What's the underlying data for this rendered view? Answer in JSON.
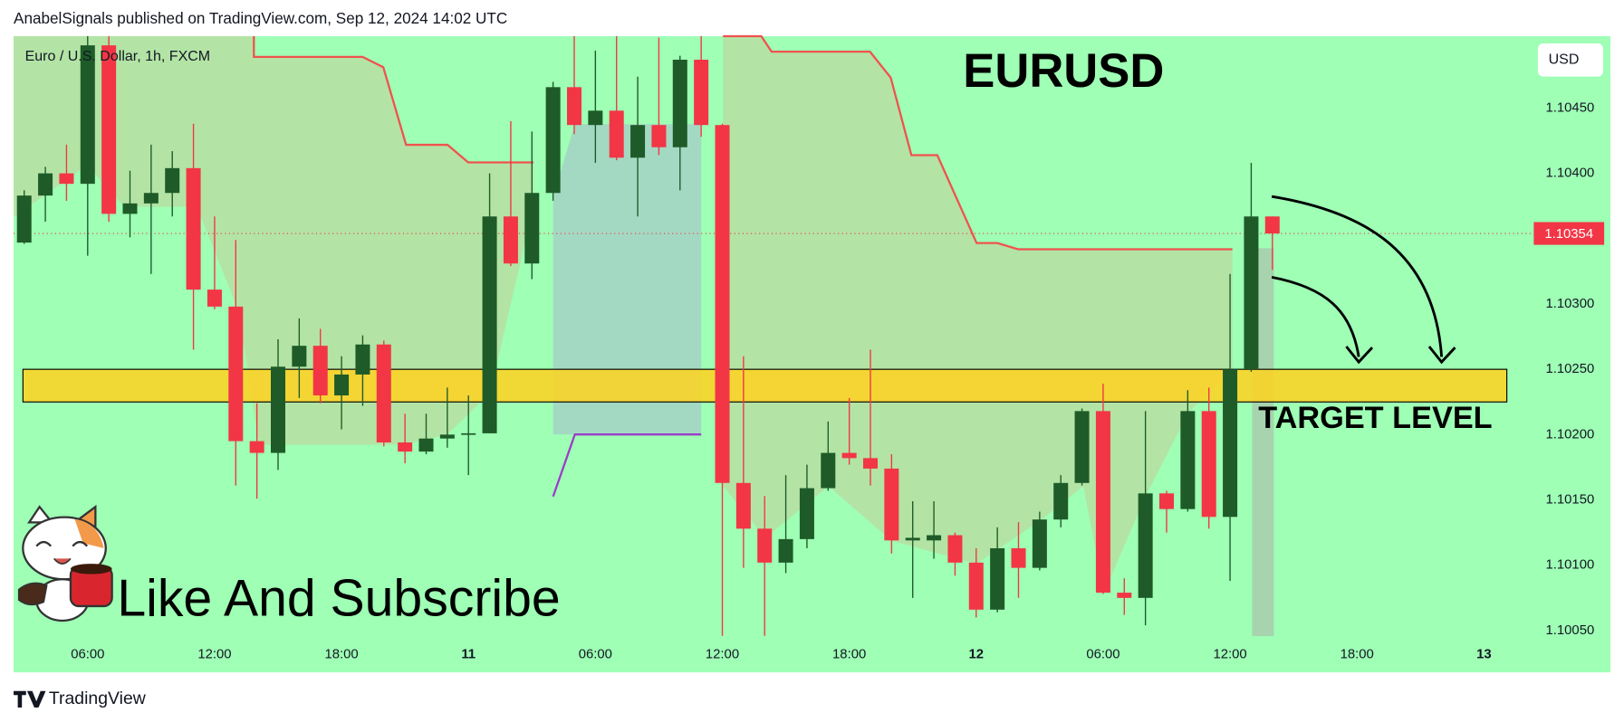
{
  "header": "AnabelSignals published on TradingView.com, Sep 12, 2024 14:02 UTC",
  "footer": "TradingView",
  "chart_data": {
    "type": "candlestick",
    "title": "EURUSD",
    "symbol_label": "Euro / U.S. Dollar, 1h, FXCM",
    "currency": "USD",
    "annotations": [
      "TARGET LEVEL",
      "Like And Subscribe"
    ],
    "target_zone": [
      1.10225,
      1.1025
    ],
    "last_price": 1.10354,
    "up_color": "#1e5b28",
    "down_color": "#f23645",
    "background": "#9effb5",
    "categories": [
      null,
      null,
      null,
      "06:00",
      null,
      null,
      null,
      null,
      null,
      "12:00",
      null,
      null,
      null,
      null,
      null,
      "18:00",
      null,
      null,
      null,
      null,
      null,
      "11",
      null,
      null,
      null,
      null,
      null,
      "06:00",
      null,
      null,
      null,
      null,
      null,
      "12:00",
      null,
      null,
      null,
      null,
      null,
      "18:00",
      null,
      null,
      null,
      null,
      null,
      "12",
      null,
      null,
      null,
      null,
      null,
      "06:00",
      null,
      null,
      null,
      null,
      null,
      "12:00",
      null,
      null,
      null,
      null,
      null,
      "18:00",
      null,
      null,
      null,
      null,
      null,
      "13",
      null,
      null
    ],
    "open": [
      1.10347,
      1.10383,
      1.104,
      1.10392,
      1.10498,
      1.10369,
      1.10377,
      1.10385,
      1.10404,
      1.10311,
      1.10298,
      1.10195,
      1.10186,
      1.10252,
      1.10268,
      1.1023,
      1.10246,
      1.10269,
      1.10194,
      1.10187,
      1.10197,
      1.102,
      1.10201,
      1.10367,
      1.10331,
      1.10385,
      1.10466,
      1.10437,
      1.10448,
      1.10412,
      1.10437,
      1.1042,
      1.10487,
      1.10437,
      1.10163,
      1.10128,
      1.10102,
      1.1012,
      1.10159,
      1.10186,
      1.10182,
      1.10174,
      1.10119,
      1.10119,
      1.10123,
      1.10102,
      1.10066,
      1.10113,
      1.10098,
      1.10135,
      1.10163,
      1.10218,
      1.10079,
      1.10075,
      1.10155,
      1.10143,
      1.10218,
      1.10137,
      1.1025,
      1.10367,
      null,
      null,
      null,
      null,
      null,
      null,
      null,
      null,
      null,
      null,
      null,
      null
    ],
    "high": [
      1.10387,
      1.10405,
      1.10422,
      1.10505,
      1.10505,
      1.10402,
      1.10422,
      1.10417,
      1.10438,
      1.10367,
      1.10349,
      1.10224,
      1.10273,
      1.10289,
      1.10281,
      1.1026,
      1.10276,
      1.10272,
      1.10216,
      1.10216,
      1.10236,
      1.1023,
      1.104,
      1.1044,
      1.10432,
      1.1047,
      1.10505,
      1.10494,
      1.10505,
      1.10474,
      1.10504,
      1.1049,
      1.10505,
      1.10438,
      1.1026,
      1.10153,
      1.10169,
      1.10177,
      1.1021,
      1.10228,
      1.10265,
      1.10185,
      1.10149,
      1.10149,
      1.10125,
      1.10113,
      1.10129,
      1.10133,
      1.10141,
      1.10169,
      1.1022,
      1.10239,
      1.1009,
      1.10218,
      1.10157,
      1.10234,
      1.10236,
      1.10323,
      1.10408,
      1.10367,
      null,
      null,
      null,
      null,
      null,
      null,
      null,
      null,
      null,
      null,
      null,
      null
    ],
    "low": [
      1.10346,
      1.10363,
      1.10379,
      1.10337,
      1.10363,
      1.10351,
      1.10323,
      1.10367,
      1.10265,
      1.10296,
      1.10161,
      1.10151,
      1.10173,
      1.10228,
      1.10224,
      1.10204,
      1.10222,
      1.10191,
      1.10178,
      1.10185,
      1.1019,
      1.10169,
      1.10201,
      1.10329,
      1.10319,
      1.10379,
      1.1043,
      1.10408,
      1.1041,
      1.10367,
      1.10414,
      1.10387,
      1.10428,
      1.10046,
      1.10098,
      1.10046,
      1.10094,
      1.10113,
      1.10157,
      1.10177,
      1.10161,
      1.10109,
      1.10075,
      1.10105,
      1.10092,
      1.1006,
      1.10064,
      1.10075,
      1.10096,
      1.10129,
      1.10161,
      1.10078,
      1.10062,
      1.10054,
      1.10125,
      1.10141,
      1.10128,
      1.10088,
      1.10248,
      1.10326,
      null,
      null,
      null,
      null,
      null,
      null,
      null,
      null,
      null,
      null,
      null,
      null
    ],
    "close": [
      1.10383,
      1.104,
      1.10392,
      1.10498,
      1.10369,
      1.10377,
      1.10385,
      1.10404,
      1.10311,
      1.10298,
      1.10195,
      1.10186,
      1.10252,
      1.10268,
      1.1023,
      1.10246,
      1.10269,
      1.10194,
      1.10187,
      1.10197,
      1.102,
      1.10201,
      1.10367,
      1.10331,
      1.10385,
      1.10466,
      1.10437,
      1.10448,
      1.10412,
      1.10437,
      1.1042,
      1.10487,
      1.10437,
      1.10163,
      1.10128,
      1.10102,
      1.1012,
      1.10159,
      1.10186,
      1.10182,
      1.10174,
      1.10119,
      1.10121,
      1.10123,
      1.10102,
      1.10066,
      1.10113,
      1.10098,
      1.10135,
      1.10163,
      1.10218,
      1.10079,
      1.10075,
      1.10155,
      1.10143,
      1.10218,
      1.10137,
      1.1025,
      1.10367,
      1.10354,
      null,
      null,
      null,
      null,
      null,
      null,
      null,
      null,
      null,
      null,
      null,
      null
    ],
    "ylim": [
      1.10018,
      1.10505
    ],
    "yticks": [
      {
        "value": 1.1005,
        "label": "1.10050"
      },
      {
        "value": 1.101,
        "label": "1.10100"
      },
      {
        "value": 1.1015,
        "label": "1.10150"
      },
      {
        "value": 1.102,
        "label": "1.10200"
      },
      {
        "value": 1.1025,
        "label": "1.10250"
      },
      {
        "value": 1.103,
        "label": "1.10300"
      },
      {
        "value": 1.104,
        "label": "1.10400"
      },
      {
        "value": 1.1045,
        "label": "1.10450"
      }
    ]
  }
}
